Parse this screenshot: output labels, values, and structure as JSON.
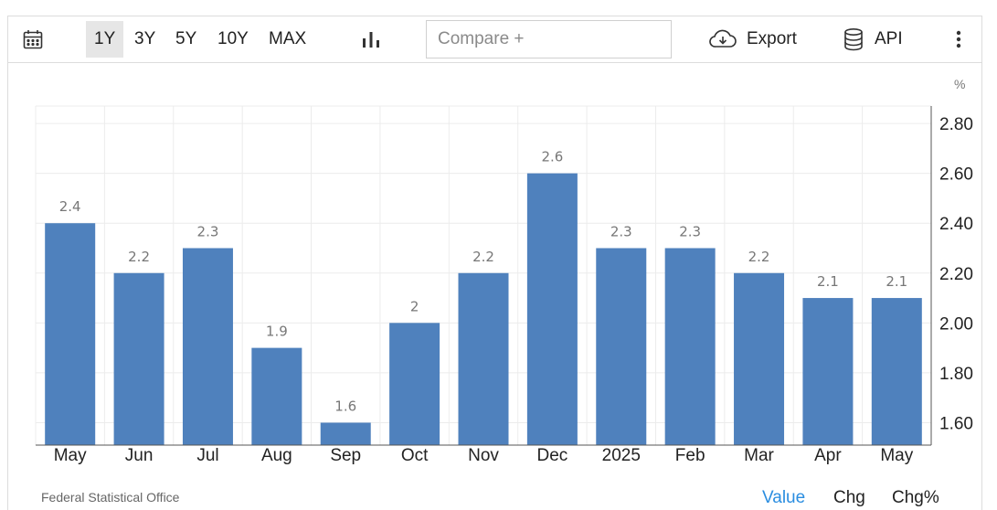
{
  "toolbar": {
    "ranges": [
      "1Y",
      "3Y",
      "5Y",
      "10Y",
      "MAX"
    ],
    "active_range": "1Y",
    "compare_placeholder": "Compare +",
    "export_label": "Export",
    "api_label": "API",
    "icons": [
      "calendar-icon",
      "bar-chart-icon",
      "cloud-download-icon",
      "database-icon",
      "more-vertical-icon"
    ]
  },
  "unit": "%",
  "chart_data": {
    "type": "bar",
    "categories": [
      "May",
      "Jun",
      "Jul",
      "Aug",
      "Sep",
      "Oct",
      "Nov",
      "Dec",
      "2025",
      "Feb",
      "Mar",
      "Apr",
      "May"
    ],
    "values": [
      2.4,
      2.2,
      2.3,
      1.9,
      1.6,
      2,
      2.2,
      2.6,
      2.3,
      2.3,
      2.2,
      2.1,
      2.1
    ],
    "data_labels": [
      "2.4",
      "2.2",
      "2.3",
      "1.9",
      "1.6",
      "2",
      "2.2",
      "2.6",
      "2.3",
      "2.3",
      "2.2",
      "2.1",
      "2.1"
    ],
    "yticks": [
      "1.60",
      "1.80",
      "2.00",
      "2.20",
      "2.40",
      "2.60",
      "2.80"
    ],
    "ylim": [
      1.51,
      2.87
    ],
    "y_axis_side": "right",
    "grid": true,
    "bar_color": "#4f81bd"
  },
  "footer": {
    "source": "Federal Statistical Office",
    "tabs": [
      "Value",
      "Chg",
      "Chg%"
    ],
    "active_tab": "Value",
    "active_color": "#2a8de0"
  }
}
